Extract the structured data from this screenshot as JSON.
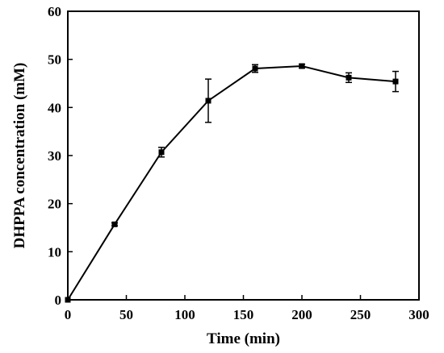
{
  "chart_data": {
    "type": "line",
    "title": "",
    "xlabel": "Time (min)",
    "ylabel": "DHPPA concentration (mM)",
    "xlim": [
      0,
      300
    ],
    "ylim": [
      0,
      60
    ],
    "xticks": [
      "0",
      "50",
      "100",
      "150",
      "200",
      "250",
      "300"
    ],
    "yticks": [
      "0",
      "10",
      "20",
      "30",
      "40",
      "50",
      "60"
    ],
    "grid": false,
    "legend": "none",
    "series": [
      {
        "x": [
          0,
          40,
          80,
          120,
          160,
          200,
          240,
          280
        ],
        "y": [
          0,
          15.7,
          30.7,
          41.4,
          48.1,
          48.6,
          46.2,
          45.4
        ],
        "error": [
          0,
          0.3,
          1.0,
          4.5,
          0.8,
          0.4,
          1.0,
          2.1
        ],
        "marker": "square",
        "color": "#000000"
      }
    ]
  }
}
